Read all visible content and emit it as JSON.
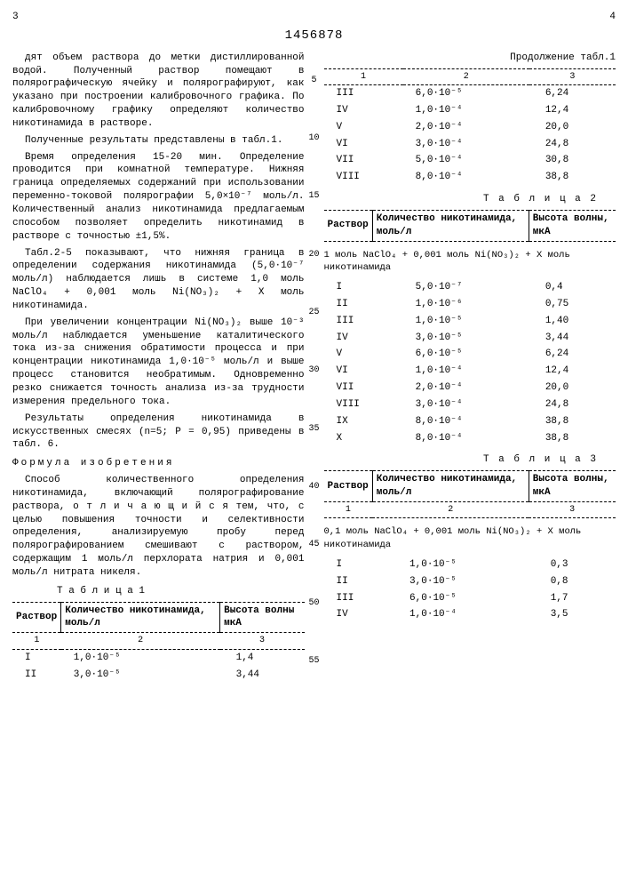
{
  "header": {
    "page_left": "3",
    "patent_no": "1456878",
    "page_right": "4"
  },
  "gutter_numbers": [
    "5",
    "10",
    "15",
    "20",
    "25",
    "30",
    "35",
    "40",
    "45",
    "50",
    "55"
  ],
  "left": {
    "p1": "дят объем раствора до метки дистиллированной водой. Полученный раствор помещают в полярографическую ячейку и полярографируют, как указано при построении калибровочного графика. По калибровочному графику определяют количество никотинамида в растворе.",
    "p2": "Полученные результаты представлены в табл.1.",
    "p3": "Время определения 15-20 мин. Определение проводится при комнатной температуре. Нижняя граница определяемых содержаний при использовании переменно-токовой полярографии 5,0×10⁻⁷ моль/л. Количественный анализ никотинамида предлагаемым способом позволяет определить никотинамид в растворе с точностью ±1,5%.",
    "p4": "Табл.2-5 показывают, что нижняя граница в определении содержания никотинамида (5,0·10⁻⁷ моль/л) наблюдается лишь в системе 1,0 моль NaClO₄ + 0,001 моль Ni(NO₃)₂ + Х моль никотинамида.",
    "p5": "При увеличении концентрации Ni(NO₃)₂ выше 10⁻³ моль/л наблюдается уменьшение каталитического тока из-за снижения обратимости процесса и при концентрации никотинамида 1,0·10⁻⁵ моль/л и выше процесс становится необратимым. Одновременно резко снижается точность анализа из-за трудности измерения предельного тока.",
    "p6": "Результаты определения никотинамида в искусственных смесях (n=5; P = 0,95) приведены в табл. 6.",
    "formula_title": "Формула изобретения",
    "p7": "Способ количественного определения никотинамида, включающий полярографирование раствора, о т л и ч а ю щ и й с я  тем, что, с целью повышения точности и селективности определения, анализируемую пробу перед полярографированием смешивают с раствором, содержащим 1 моль/л перхлората натрия и 0,001 моль/л нитрата никеля.",
    "table1_label": "Т а б л и ц а 1",
    "t1_h1": "Раствор",
    "t1_h2": "Количество никотинамида, моль/л",
    "t1_h3": "Высота волны мкА",
    "t1_c1": "1",
    "t1_c2": "2",
    "t1_c3": "3",
    "t1": [
      [
        "I",
        "1,0·10⁻⁵",
        "1,4"
      ],
      [
        "II",
        "3,0·10⁻⁵",
        "3,44"
      ]
    ]
  },
  "right": {
    "cont1": "Продолжение табл.1",
    "t1b_cols": [
      "1",
      "2",
      "3"
    ],
    "t1b": [
      [
        "III",
        "6,0·10⁻⁵",
        "6,24"
      ],
      [
        "IV",
        "1,0·10⁻⁴",
        "12,4"
      ],
      [
        "V",
        "2,0·10⁻⁴",
        "20,0"
      ],
      [
        "VI",
        "3,0·10⁻⁴",
        "24,8"
      ],
      [
        "VII",
        "5,0·10⁻⁴",
        "30,8"
      ],
      [
        "VIII",
        "8,0·10⁻⁴",
        "38,8"
      ]
    ],
    "t2_label": "Т а б л и ц а 2",
    "t2_h1": "Раствор",
    "t2_h2": "Количество никотинамида, моль/л",
    "t2_h3": "Высота волны, мкА",
    "t2_cond": "1 моль NaClO₄ + 0,001 моль Ni(NO₃)₂ + Х моль никотинамида",
    "t2": [
      [
        "I",
        "5,0·10⁻⁷",
        "0,4"
      ],
      [
        "II",
        "1,0·10⁻⁶",
        "0,75"
      ],
      [
        "III",
        "1,0·10⁻⁵",
        "1,40"
      ],
      [
        "IV",
        "3,0·10⁻⁵",
        "3,44"
      ],
      [
        "V",
        "6,0·10⁻⁵",
        "6,24"
      ],
      [
        "VI",
        "1,0·10⁻⁴",
        "12,4"
      ],
      [
        "VII",
        "2,0·10⁻⁴",
        "20,0"
      ],
      [
        "VIII",
        "3,0·10⁻⁴",
        "24,8"
      ],
      [
        "IX",
        "8,0·10⁻⁴",
        "38,8"
      ],
      [
        "X",
        "8,0·10⁻⁴",
        "38,8"
      ]
    ],
    "t3_label": "Т а б л и ц а 3",
    "t3_h1": "Раствор",
    "t3_h2": "Количество никотинамида, моль/л",
    "t3_h3": "Высота волны, мкА",
    "t3_c1": "1",
    "t3_c2": "2",
    "t3_c3": "3",
    "t3_cond": "0,1 моль NaClO₄ + 0,001 моль Ni(NO₃)₂ + Х моль никотинамида",
    "t3": [
      [
        "I",
        "1,0·10⁻⁵",
        "0,3"
      ],
      [
        "II",
        "3,0·10⁻⁵",
        "0,8"
      ],
      [
        "III",
        "6,0·10⁻⁵",
        "1,7"
      ],
      [
        "IV",
        "1,0·10⁻⁴",
        "3,5"
      ]
    ]
  }
}
